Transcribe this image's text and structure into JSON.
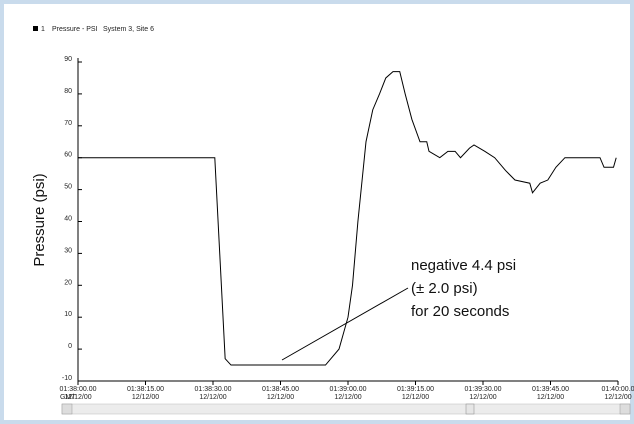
{
  "chart_data": {
    "type": "line",
    "legend": {
      "index": "1",
      "name": "Pressure - PSI",
      "site": "System 3, Site 6"
    },
    "y_label": "Pressure (psi)",
    "x_prefix": "GMT",
    "x": [
      0,
      30.4,
      32.7,
      34,
      55,
      58,
      60,
      61,
      62.2,
      64,
      65.5,
      67,
      68.4,
      70,
      71.5,
      72.7,
      74.2,
      76,
      77.5,
      78,
      80.4,
      82.2,
      83.8,
      85,
      87,
      88,
      90.4,
      92.6,
      95,
      97.1,
      100.4,
      101,
      102.7,
      104.4,
      106.2,
      108.2,
      116,
      116.9,
      119,
      119.6
    ],
    "series": [
      {
        "name": "Pressure - PSI",
        "color": "#000000",
        "values": [
          60,
          60,
          -3,
          -5,
          -5,
          0,
          10,
          20,
          40,
          65,
          75,
          80,
          85,
          87,
          87,
          80,
          72,
          65,
          65,
          62,
          60,
          62,
          62,
          60,
          63,
          64,
          62,
          60,
          56,
          53,
          52,
          49,
          52,
          53,
          57,
          60,
          60,
          57,
          57,
          60
        ]
      }
    ],
    "xlim": [
      0,
      120
    ],
    "xticks": [
      {
        "value": 0,
        "label": "01:38:00.00",
        "date": "12/12/00"
      },
      {
        "value": 15,
        "label": "01:38:15.00",
        "date": "12/12/00"
      },
      {
        "value": 30,
        "label": "01:38:30.00",
        "date": "12/12/00"
      },
      {
        "value": 45,
        "label": "01:38:45.00",
        "date": "12/12/00"
      },
      {
        "value": 60,
        "label": "01:39:00.00",
        "date": "12/12/00"
      },
      {
        "value": 75,
        "label": "01:39:15.00",
        "date": "12/12/00"
      },
      {
        "value": 90,
        "label": "01:39:30.00",
        "date": "12/12/00"
      },
      {
        "value": 105,
        "label": "01:39:45.00",
        "date": "12/12/00"
      },
      {
        "value": 120,
        "label": "01:40:00.0",
        "date": "12/12/00"
      }
    ],
    "ylim": [
      -10,
      90
    ],
    "yticks": [
      -10,
      0,
      10,
      20,
      30,
      40,
      50,
      60,
      70,
      80,
      90
    ],
    "annotations": [
      "negative 4.4 psi",
      "(± 2.0 psi)",
      "for 20 seconds"
    ]
  }
}
